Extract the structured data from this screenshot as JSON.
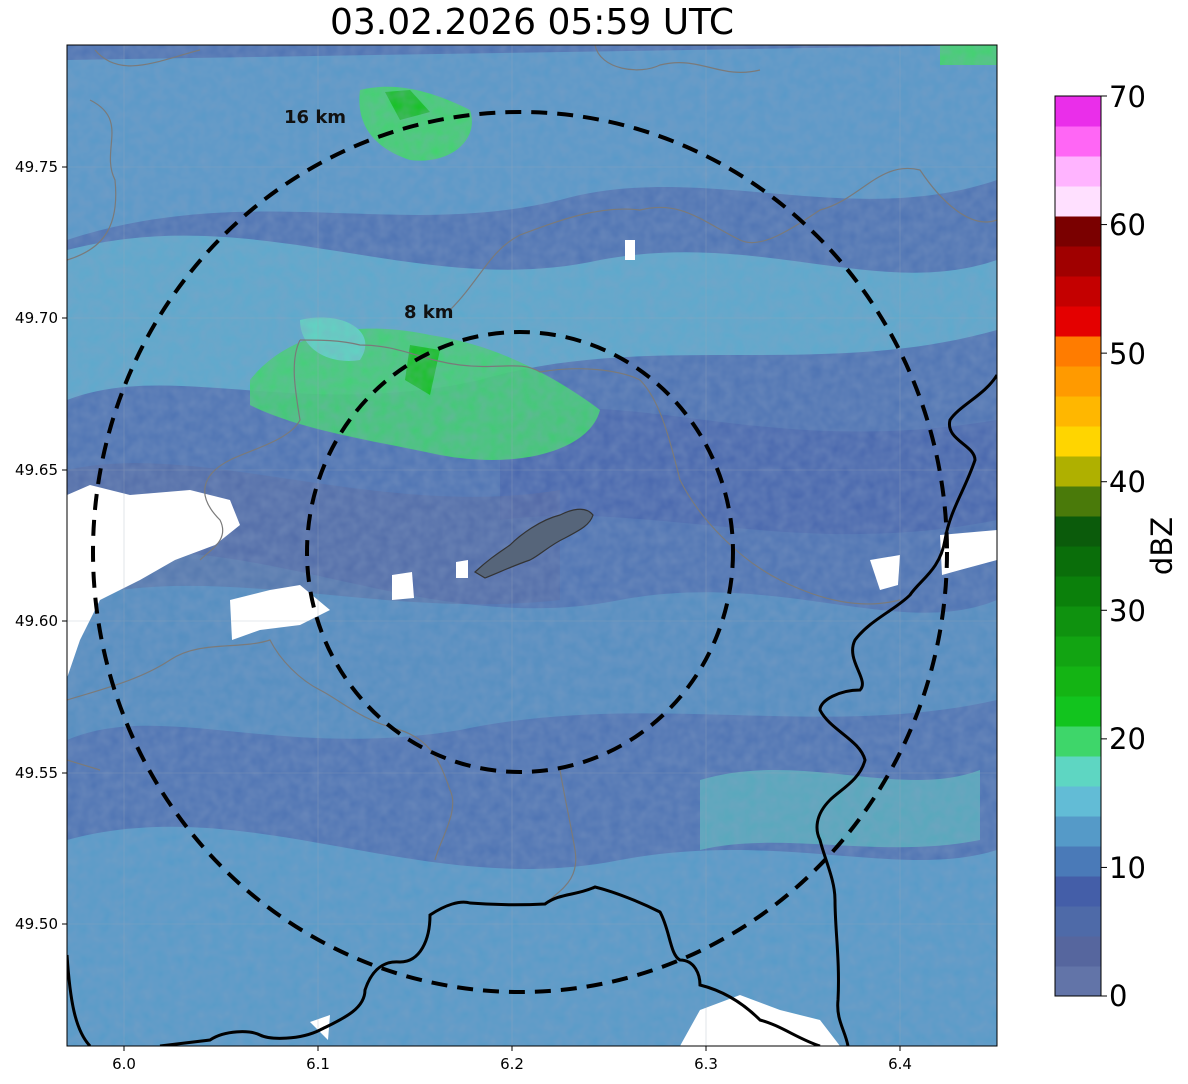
{
  "title": "03.02.2026 05:59 UTC",
  "map": {
    "x_ticks": [
      "6.0",
      "6.1",
      "6.2",
      "6.3",
      "6.4"
    ],
    "y_ticks": [
      "49.75",
      "49.70",
      "49.65",
      "49.60",
      "49.55",
      "49.50"
    ],
    "x_range": [
      5.971,
      6.45
    ],
    "y_range": [
      49.46,
      49.79
    ],
    "ring_labels": [
      "16 km",
      "8 km"
    ],
    "ring_radii_km": [
      16,
      8
    ],
    "radar_center": [
      6.205,
      49.624
    ]
  },
  "colorbar": {
    "label": "dBZ",
    "ticks": [
      "0",
      "10",
      "20",
      "30",
      "40",
      "50",
      "60",
      "70"
    ],
    "colors": [
      "#6274a8",
      "#56669e",
      "#4e6aa8",
      "#445ea8",
      "#4a7ab8",
      "#559ac8",
      "#62bcd6",
      "#5ed6c2",
      "#3ed66a",
      "#12c41e",
      "#14b414",
      "#12a412",
      "#0f920f",
      "#0b800b",
      "#0a6e0a",
      "#0b5b0b",
      "#4a7a0a",
      "#afb000",
      "#ffd500",
      "#ffb700",
      "#ff9a00",
      "#ff7c00",
      "#e40000",
      "#c40000",
      "#a00000",
      "#7a0000",
      "#ffe0ff",
      "#ffb4ff",
      "#ff66f5",
      "#ea2eea"
    ]
  },
  "colors": {
    "background_low": "#4d73b3",
    "precip_medium": "#62bcd6",
    "precip_high": "#3ed66a",
    "no_data": "#ffffff",
    "rings": "#000000"
  }
}
